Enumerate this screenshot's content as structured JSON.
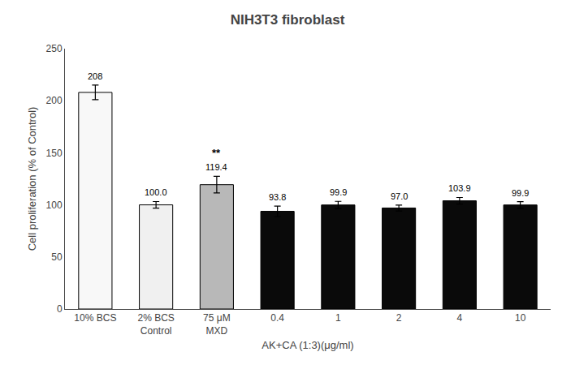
{
  "chart_data": {
    "type": "bar",
    "title": "NIH3T3 fibroblast",
    "ylabel": "Cell proliferation (% of Control)",
    "xlabel": "AK+CA (1:3)(μg/ml)",
    "categories": [
      "10% BCS",
      "2% BCS\nControl",
      "75 μM\nMXD",
      "0.4",
      "1",
      "2",
      "4",
      "10"
    ],
    "values": [
      208.0,
      100.0,
      119.4,
      93.8,
      99.9,
      97.0,
      103.9,
      99.9
    ],
    "value_labels": [
      "208",
      "100.0",
      "119.4",
      "93.8",
      "99.9",
      "97.0",
      "103.9",
      "99.9"
    ],
    "errors": [
      7.0,
      3.2,
      8.0,
      5.0,
      3.5,
      2.8,
      3.2,
      3.2
    ],
    "significance": [
      null,
      null,
      "**",
      null,
      null,
      null,
      null,
      null
    ],
    "colors": [
      "#f8f8f8",
      "#f0f0f0",
      "#b8b8b8",
      "#0a0a0a",
      "#0a0a0a",
      "#0a0a0a",
      "#0a0a0a",
      "#0a0a0a"
    ],
    "ylim": [
      0,
      250
    ],
    "yticks": [
      0,
      50,
      100,
      150,
      200,
      250
    ],
    "data_labels": true,
    "grid": false
  }
}
